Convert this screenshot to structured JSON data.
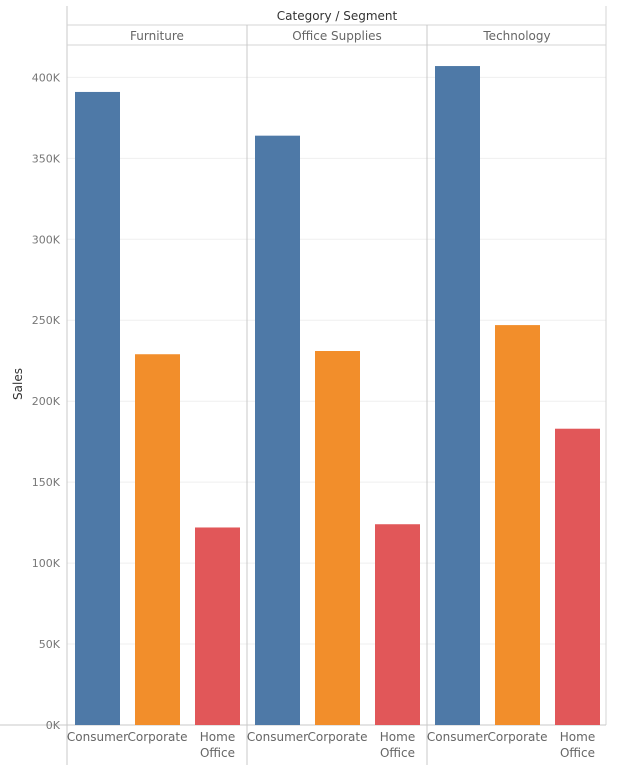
{
  "chart_data": {
    "type": "bar",
    "title": "Category / Segment",
    "ylabel": "Sales",
    "ylim": [
      0,
      420000
    ],
    "yticks": [
      0,
      50000,
      100000,
      150000,
      200000,
      250000,
      300000,
      350000,
      400000
    ],
    "ytick_labels": [
      "0K",
      "50K",
      "100K",
      "150K",
      "200K",
      "250K",
      "300K",
      "350K",
      "400K"
    ],
    "grid": true,
    "panels": [
      {
        "category": "Furniture",
        "segments": [
          "Consumer",
          "Corporate",
          "Home Office"
        ],
        "values": [
          391000,
          229000,
          122000
        ]
      },
      {
        "category": "Office Supplies",
        "segments": [
          "Consumer",
          "Corporate",
          "Home Office"
        ],
        "values": [
          364000,
          231000,
          124000
        ]
      },
      {
        "category": "Technology",
        "segments": [
          "Consumer",
          "Corporate",
          "Home Office"
        ],
        "values": [
          407000,
          247000,
          183000
        ]
      }
    ],
    "colors": {
      "Consumer": "#4e79a7",
      "Corporate": "#f28e2b",
      "Home Office": "#e15759"
    }
  }
}
